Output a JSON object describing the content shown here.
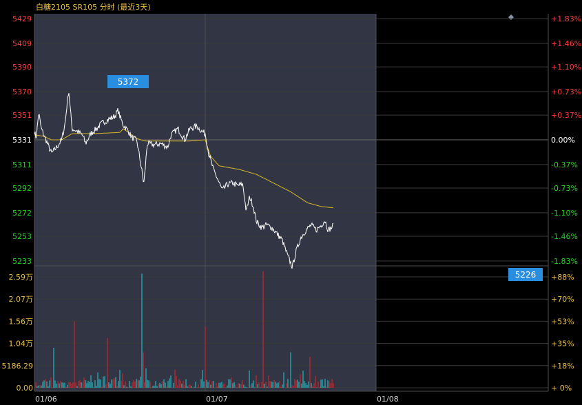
{
  "header": {
    "title": "白糖2105 SR105 分时 (最近3天)",
    "diamond_icon": "diamond-icon"
  },
  "colors": {
    "up": "#ff3b3b",
    "down": "#22d622",
    "flat": "#ffffff",
    "header": "#e8c050",
    "price_line": "#ffffff",
    "avg_line": "#d8b828",
    "vol_up": "#e8202a",
    "vol_down": "#20d0d8",
    "highlight_bg": "#3b4050",
    "badge": "#2a8ee0"
  },
  "chart_data": {
    "type": "line",
    "title": "白糖2105 SR105 分时 (最近3天)",
    "reference_price": 5331,
    "price_axis": [
      "5429",
      "5409",
      "5390",
      "5370",
      "5351",
      "5331",
      "5311",
      "5292",
      "5272",
      "5253",
      "5233"
    ],
    "pct_axis": [
      "+1.83%",
      "+1.46%",
      "+1.10%",
      "+0.73%",
      "+0.37%",
      "0.00%",
      "-0.37%",
      "-0.73%",
      "-1.10%",
      "-1.46%",
      "-1.83%"
    ],
    "volume_axis": [
      "2.59万",
      "2.07万",
      "1.56万",
      "1.04万",
      "5186.29",
      "0.00"
    ],
    "volume_pct_axis": [
      "+88%",
      "+70%",
      "+53%",
      "+35%",
      "+18%",
      "+ 0%"
    ],
    "days": [
      "01/06",
      "01/07",
      "01/08"
    ],
    "high_label": "5372",
    "low_label": "5226",
    "ylim": [
      5229,
      5433
    ],
    "price_keypoints": [
      [
        0,
        5338
      ],
      [
        0.01,
        5332
      ],
      [
        0.025,
        5353
      ],
      [
        0.04,
        5340
      ],
      [
        0.07,
        5330
      ],
      [
        0.1,
        5320
      ],
      [
        0.13,
        5325
      ],
      [
        0.16,
        5331
      ],
      [
        0.18,
        5345
      ],
      [
        0.2,
        5372
      ],
      [
        0.22,
        5340
      ],
      [
        0.25,
        5338
      ],
      [
        0.28,
        5335
      ],
      [
        0.3,
        5328
      ],
      [
        0.33,
        5336
      ],
      [
        0.37,
        5341
      ],
      [
        0.4,
        5345
      ],
      [
        0.44,
        5348
      ],
      [
        0.47,
        5350
      ],
      [
        0.49,
        5355
      ],
      [
        0.5,
        5350
      ],
      [
        0.52,
        5343
      ],
      [
        0.55,
        5338
      ],
      [
        0.57,
        5333
      ],
      [
        0.6,
        5330
      ],
      [
        0.63,
        5305
      ],
      [
        0.64,
        5295
      ],
      [
        0.65,
        5310
      ],
      [
        0.66,
        5328
      ],
      [
        0.7,
        5327
      ],
      [
        0.74,
        5328
      ],
      [
        0.78,
        5325
      ],
      [
        0.8,
        5335
      ],
      [
        0.84,
        5340
      ],
      [
        0.88,
        5331
      ],
      [
        0.91,
        5340
      ],
      [
        0.95,
        5342
      ],
      [
        0.98,
        5338
      ],
      [
        1.0,
        5336
      ],
      [
        1.02,
        5320
      ],
      [
        1.05,
        5306
      ],
      [
        1.07,
        5300
      ],
      [
        1.1,
        5290
      ],
      [
        1.13,
        5295
      ],
      [
        1.16,
        5296
      ],
      [
        1.19,
        5294
      ],
      [
        1.22,
        5295
      ],
      [
        1.24,
        5273
      ],
      [
        1.26,
        5285
      ],
      [
        1.28,
        5278
      ],
      [
        1.3,
        5265
      ],
      [
        1.33,
        5260
      ],
      [
        1.36,
        5262
      ],
      [
        1.39,
        5260
      ],
      [
        1.42,
        5255
      ],
      [
        1.45,
        5250
      ],
      [
        1.48,
        5238
      ],
      [
        1.51,
        5228
      ],
      [
        1.53,
        5240
      ],
      [
        1.56,
        5252
      ],
      [
        1.59,
        5258
      ],
      [
        1.62,
        5262
      ],
      [
        1.65,
        5258
      ],
      [
        1.68,
        5262
      ],
      [
        1.7,
        5266
      ],
      [
        1.72,
        5258
      ],
      [
        1.74,
        5260
      ],
      [
        1.75,
        5262
      ]
    ],
    "avg_keypoints": [
      [
        0,
        5335
      ],
      [
        0.05,
        5334
      ],
      [
        0.1,
        5331
      ],
      [
        0.16,
        5331
      ],
      [
        0.22,
        5336
      ],
      [
        0.35,
        5336
      ],
      [
        0.5,
        5337
      ],
      [
        0.52,
        5340
      ],
      [
        0.6,
        5332
      ],
      [
        0.65,
        5330
      ],
      [
        0.75,
        5330
      ],
      [
        0.9,
        5330
      ],
      [
        1.0,
        5331
      ],
      [
        1.03,
        5318
      ],
      [
        1.08,
        5310
      ],
      [
        1.2,
        5307
      ],
      [
        1.3,
        5303
      ],
      [
        1.4,
        5296
      ],
      [
        1.5,
        5289
      ],
      [
        1.6,
        5280
      ],
      [
        1.68,
        5277
      ],
      [
        1.75,
        5276
      ]
    ]
  }
}
